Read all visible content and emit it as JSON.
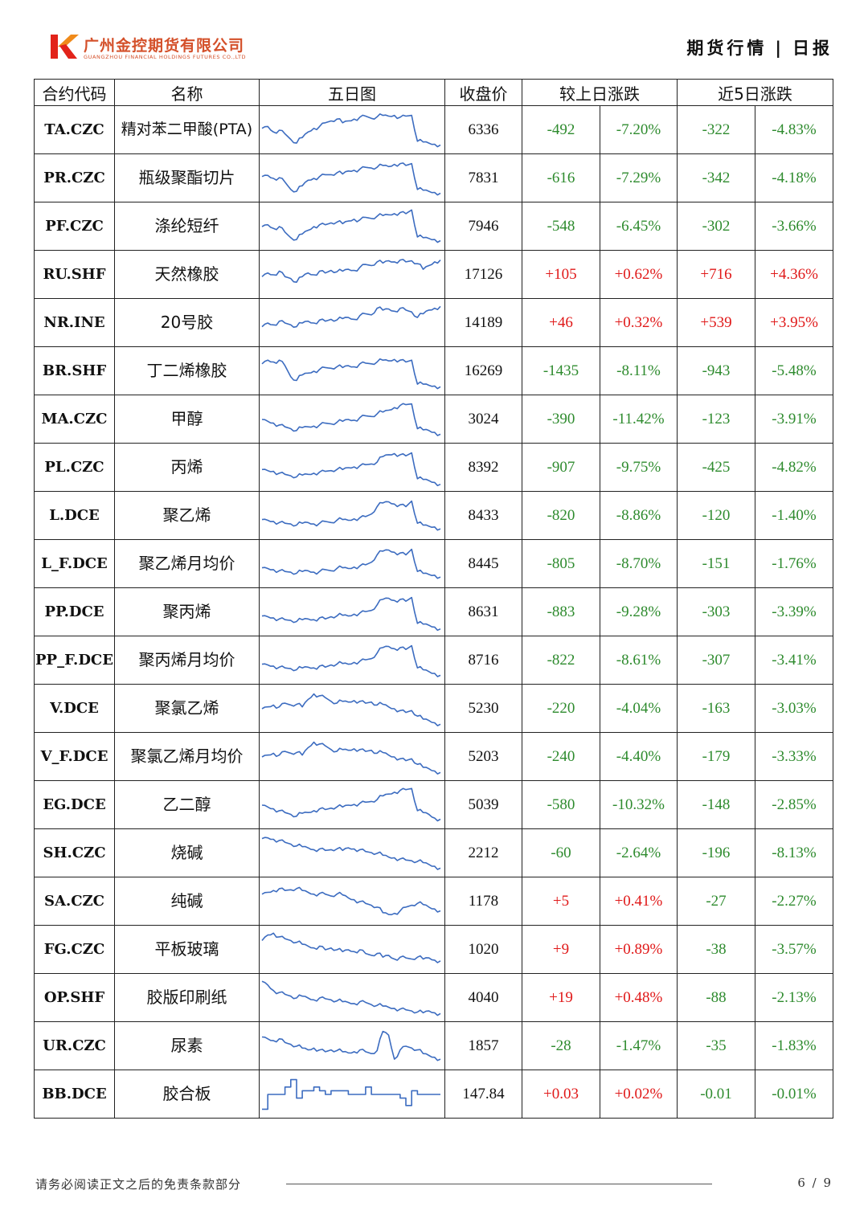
{
  "header": {
    "company_name": "广州金控期货有限公司",
    "company_name_en": "GUANGZHOU FINANCIAL HOLDINGS FUTURES CO.,LTD",
    "report_title": "期货行情",
    "report_type": "日报",
    "brand_color": "#d4502a"
  },
  "table": {
    "headers": {
      "code": "合约代码",
      "name": "名称",
      "chart": "五日图",
      "close": "收盘价",
      "daily": "较上日涨跌",
      "five_day": "近5日涨跌"
    },
    "rows": [
      {
        "code": "TA.CZC",
        "name": "精对苯二甲酸(PTA)",
        "close": "6336",
        "d_chg": "-492",
        "d_pct": "-7.20%",
        "w_chg": "-322",
        "w_pct": "-4.83%"
      },
      {
        "code": "PR.CZC",
        "name": "瓶级聚酯切片",
        "close": "7831",
        "d_chg": "-616",
        "d_pct": "-7.29%",
        "w_chg": "-342",
        "w_pct": "-4.18%"
      },
      {
        "code": "PF.CZC",
        "name": "涤纶短纤",
        "close": "7946",
        "d_chg": "-548",
        "d_pct": "-6.45%",
        "w_chg": "-302",
        "w_pct": "-3.66%"
      },
      {
        "code": "RU.SHF",
        "name": "天然橡胶",
        "close": "17126",
        "d_chg": "+105",
        "d_pct": "+0.62%",
        "w_chg": "+716",
        "w_pct": "+4.36%"
      },
      {
        "code": "NR.INE",
        "name": "20号胶",
        "close": "14189",
        "d_chg": "+46",
        "d_pct": "+0.32%",
        "w_chg": "+539",
        "w_pct": "+3.95%"
      },
      {
        "code": "BR.SHF",
        "name": "丁二烯橡胶",
        "close": "16269",
        "d_chg": "-1435",
        "d_pct": "-8.11%",
        "w_chg": "-943",
        "w_pct": "-5.48%"
      },
      {
        "code": "MA.CZC",
        "name": "甲醇",
        "close": "3024",
        "d_chg": "-390",
        "d_pct": "-11.42%",
        "w_chg": "-123",
        "w_pct": "-3.91%"
      },
      {
        "code": "PL.CZC",
        "name": "丙烯",
        "close": "8392",
        "d_chg": "-907",
        "d_pct": "-9.75%",
        "w_chg": "-425",
        "w_pct": "-4.82%"
      },
      {
        "code": "L.DCE",
        "name": "聚乙烯",
        "close": "8433",
        "d_chg": "-820",
        "d_pct": "-8.86%",
        "w_chg": "-120",
        "w_pct": "-1.40%"
      },
      {
        "code": "L_F.DCE",
        "name": "聚乙烯月均价",
        "close": "8445",
        "d_chg": "-805",
        "d_pct": "-8.70%",
        "w_chg": "-151",
        "w_pct": "-1.76%"
      },
      {
        "code": "PP.DCE",
        "name": "聚丙烯",
        "close": "8631",
        "d_chg": "-883",
        "d_pct": "-9.28%",
        "w_chg": "-303",
        "w_pct": "-3.39%"
      },
      {
        "code": "PP_F.DCE",
        "name": "聚丙烯月均价",
        "close": "8716",
        "d_chg": "-822",
        "d_pct": "-8.61%",
        "w_chg": "-307",
        "w_pct": "-3.41%"
      },
      {
        "code": "V.DCE",
        "name": "聚氯乙烯",
        "close": "5230",
        "d_chg": "-220",
        "d_pct": "-4.04%",
        "w_chg": "-163",
        "w_pct": "-3.03%"
      },
      {
        "code": "V_F.DCE",
        "name": "聚氯乙烯月均价",
        "close": "5203",
        "d_chg": "-240",
        "d_pct": "-4.40%",
        "w_chg": "-179",
        "w_pct": "-3.33%"
      },
      {
        "code": "EG.DCE",
        "name": "乙二醇",
        "close": "5039",
        "d_chg": "-580",
        "d_pct": "-10.32%",
        "w_chg": "-148",
        "w_pct": "-2.85%"
      },
      {
        "code": "SH.CZC",
        "name": "烧碱",
        "close": "2212",
        "d_chg": "-60",
        "d_pct": "-2.64%",
        "w_chg": "-196",
        "w_pct": "-8.13%"
      },
      {
        "code": "SA.CZC",
        "name": "纯碱",
        "close": "1178",
        "d_chg": "+5",
        "d_pct": "+0.41%",
        "w_chg": "-27",
        "w_pct": "-2.27%"
      },
      {
        "code": "FG.CZC",
        "name": "平板玻璃",
        "close": "1020",
        "d_chg": "+9",
        "d_pct": "+0.89%",
        "w_chg": "-38",
        "w_pct": "-3.57%"
      },
      {
        "code": "OP.SHF",
        "name": "胶版印刷纸",
        "close": "4040",
        "d_chg": "+19",
        "d_pct": "+0.48%",
        "w_chg": "-88",
        "w_pct": "-2.13%"
      },
      {
        "code": "UR.CZC",
        "name": "尿素",
        "close": "1857",
        "d_chg": "-28",
        "d_pct": "-1.47%",
        "w_chg": "-35",
        "w_pct": "-1.83%"
      },
      {
        "code": "BB.DCE",
        "name": "胶合板",
        "close": "147.84",
        "d_chg": "+0.03",
        "d_pct": "+0.02%",
        "w_chg": "-0.01",
        "w_pct": "-0.01%"
      }
    ]
  },
  "sparklines": {
    "color": "#3c6cc0",
    "shapes": {
      "TA.CZC": [
        0.45,
        0.4,
        0.55,
        0.5,
        0.6,
        0.75,
        0.85,
        0.7,
        0.55,
        0.45,
        0.4,
        0.3,
        0.25,
        0.2,
        0.3,
        0.25,
        0.2,
        0.15,
        0.12,
        0.18,
        0.14,
        0.1,
        0.12,
        0.1,
        0.15,
        0.12,
        0.1,
        0.8,
        0.82,
        0.85,
        0.88,
        0.9
      ],
      "PR.CZC": [
        0.45,
        0.42,
        0.5,
        0.48,
        0.6,
        0.8,
        0.85,
        0.7,
        0.55,
        0.5,
        0.45,
        0.4,
        0.4,
        0.35,
        0.38,
        0.3,
        0.28,
        0.25,
        0.2,
        0.22,
        0.2,
        0.15,
        0.18,
        0.12,
        0.1,
        0.15,
        0.1,
        0.8,
        0.82,
        0.85,
        0.88,
        0.9
      ],
      "PF.CZC": [
        0.5,
        0.45,
        0.55,
        0.5,
        0.65,
        0.8,
        0.85,
        0.7,
        0.6,
        0.5,
        0.45,
        0.45,
        0.4,
        0.38,
        0.42,
        0.35,
        0.3,
        0.32,
        0.25,
        0.28,
        0.22,
        0.2,
        0.18,
        0.15,
        0.12,
        0.15,
        0.05,
        0.78,
        0.8,
        0.82,
        0.85,
        0.88
      ],
      "RU.SHF": [
        0.55,
        0.45,
        0.5,
        0.4,
        0.55,
        0.6,
        0.7,
        0.55,
        0.45,
        0.5,
        0.4,
        0.45,
        0.38,
        0.42,
        0.4,
        0.35,
        0.38,
        0.3,
        0.22,
        0.25,
        0.15,
        0.18,
        0.12,
        0.15,
        0.1,
        0.15,
        0.12,
        0.2,
        0.35,
        0.25,
        0.15,
        0.1
      ],
      "NR.INE": [
        0.6,
        0.5,
        0.55,
        0.45,
        0.5,
        0.55,
        0.6,
        0.5,
        0.45,
        0.5,
        0.42,
        0.45,
        0.4,
        0.42,
        0.38,
        0.35,
        0.4,
        0.3,
        0.25,
        0.28,
        0.1,
        0.15,
        0.12,
        0.18,
        0.1,
        0.15,
        0.2,
        0.35,
        0.25,
        0.15,
        0.1,
        0.05
      ],
      "BR.SHF": [
        0.3,
        0.2,
        0.25,
        0.2,
        0.35,
        0.65,
        0.75,
        0.6,
        0.55,
        0.5,
        0.45,
        0.4,
        0.42,
        0.38,
        0.4,
        0.35,
        0.38,
        0.3,
        0.28,
        0.3,
        0.25,
        0.2,
        0.22,
        0.18,
        0.2,
        0.25,
        0.2,
        0.85,
        0.85,
        0.88,
        0.9,
        0.92
      ],
      "MA.CZC": [
        0.5,
        0.55,
        0.6,
        0.65,
        0.7,
        0.75,
        0.8,
        0.72,
        0.7,
        0.68,
        0.65,
        0.6,
        0.62,
        0.58,
        0.55,
        0.5,
        0.52,
        0.45,
        0.4,
        0.42,
        0.35,
        0.3,
        0.25,
        0.18,
        0.12,
        0.1,
        0.08,
        0.75,
        0.78,
        0.8,
        0.85,
        0.9
      ],
      "PL.CZC": [
        0.55,
        0.58,
        0.6,
        0.65,
        0.68,
        0.72,
        0.75,
        0.7,
        0.68,
        0.65,
        0.62,
        0.6,
        0.58,
        0.55,
        0.55,
        0.5,
        0.48,
        0.45,
        0.42,
        0.4,
        0.35,
        0.2,
        0.15,
        0.12,
        0.15,
        0.18,
        0.1,
        0.8,
        0.82,
        0.85,
        0.9,
        0.95
      ],
      "L.DCE": [
        0.6,
        0.62,
        0.65,
        0.68,
        0.7,
        0.72,
        0.75,
        0.7,
        0.68,
        0.72,
        0.7,
        0.65,
        0.68,
        0.62,
        0.6,
        0.62,
        0.58,
        0.55,
        0.52,
        0.45,
        0.25,
        0.15,
        0.12,
        0.18,
        0.2,
        0.25,
        0.1,
        0.7,
        0.75,
        0.78,
        0.8,
        0.85
      ],
      "L_F.DCE": [
        0.6,
        0.62,
        0.65,
        0.68,
        0.7,
        0.72,
        0.75,
        0.7,
        0.68,
        0.72,
        0.7,
        0.65,
        0.68,
        0.62,
        0.6,
        0.62,
        0.58,
        0.55,
        0.52,
        0.45,
        0.25,
        0.15,
        0.12,
        0.18,
        0.2,
        0.25,
        0.1,
        0.7,
        0.75,
        0.78,
        0.8,
        0.85
      ],
      "PP.DCE": [
        0.6,
        0.62,
        0.65,
        0.68,
        0.7,
        0.72,
        0.75,
        0.7,
        0.68,
        0.7,
        0.65,
        0.68,
        0.62,
        0.6,
        0.58,
        0.6,
        0.55,
        0.52,
        0.48,
        0.45,
        0.3,
        0.15,
        0.12,
        0.18,
        0.15,
        0.2,
        0.1,
        0.8,
        0.82,
        0.85,
        0.9,
        0.95
      ],
      "PP_F.DCE": [
        0.6,
        0.62,
        0.65,
        0.68,
        0.7,
        0.72,
        0.75,
        0.7,
        0.68,
        0.7,
        0.65,
        0.68,
        0.62,
        0.6,
        0.58,
        0.6,
        0.55,
        0.52,
        0.48,
        0.45,
        0.3,
        0.15,
        0.12,
        0.18,
        0.15,
        0.2,
        0.1,
        0.7,
        0.75,
        0.8,
        0.85,
        0.9
      ],
      "V.DCE": [
        0.5,
        0.45,
        0.4,
        0.45,
        0.35,
        0.4,
        0.38,
        0.45,
        0.25,
        0.1,
        0.15,
        0.2,
        0.3,
        0.35,
        0.3,
        0.32,
        0.28,
        0.3,
        0.35,
        0.32,
        0.4,
        0.38,
        0.45,
        0.5,
        0.55,
        0.6,
        0.55,
        0.7,
        0.78,
        0.82,
        0.88,
        0.92
      ],
      "V_F.DCE": [
        0.5,
        0.45,
        0.4,
        0.45,
        0.35,
        0.4,
        0.38,
        0.45,
        0.25,
        0.1,
        0.15,
        0.2,
        0.3,
        0.35,
        0.3,
        0.32,
        0.28,
        0.3,
        0.35,
        0.32,
        0.4,
        0.38,
        0.45,
        0.5,
        0.55,
        0.6,
        0.55,
        0.7,
        0.78,
        0.82,
        0.88,
        0.92
      ],
      "EG.DCE": [
        0.5,
        0.55,
        0.6,
        0.65,
        0.7,
        0.75,
        0.8,
        0.72,
        0.7,
        0.65,
        0.6,
        0.62,
        0.58,
        0.55,
        0.55,
        0.5,
        0.48,
        0.45,
        0.42,
        0.4,
        0.35,
        0.25,
        0.2,
        0.15,
        0.1,
        0.08,
        0.05,
        0.65,
        0.7,
        0.75,
        0.85,
        0.88
      ],
      "SH.CZC": [
        0.1,
        0.08,
        0.12,
        0.15,
        0.2,
        0.25,
        0.3,
        0.32,
        0.35,
        0.4,
        0.38,
        0.42,
        0.4,
        0.38,
        0.42,
        0.35,
        0.38,
        0.4,
        0.45,
        0.48,
        0.5,
        0.55,
        0.6,
        0.62,
        0.65,
        0.68,
        0.7,
        0.72,
        0.75,
        0.8,
        0.85,
        0.9
      ],
      "SA.CZC": [
        0.3,
        0.25,
        0.2,
        0.15,
        0.2,
        0.18,
        0.15,
        0.2,
        0.25,
        0.3,
        0.28,
        0.3,
        0.35,
        0.3,
        0.32,
        0.4,
        0.45,
        0.5,
        0.55,
        0.6,
        0.65,
        0.8,
        0.85,
        0.82,
        0.75,
        0.65,
        0.6,
        0.55,
        0.58,
        0.65,
        0.7,
        0.75
      ],
      "FG.CZC": [
        0.25,
        0.1,
        0.05,
        0.15,
        0.2,
        0.25,
        0.3,
        0.35,
        0.4,
        0.45,
        0.4,
        0.5,
        0.45,
        0.5,
        0.55,
        0.5,
        0.55,
        0.5,
        0.6,
        0.65,
        0.6,
        0.7,
        0.65,
        0.75,
        0.7,
        0.72,
        0.75,
        0.7,
        0.75,
        0.72,
        0.78,
        0.8
      ],
      "OP.SHF": [
        0.05,
        0.15,
        0.3,
        0.35,
        0.4,
        0.45,
        0.5,
        0.45,
        0.5,
        0.55,
        0.5,
        0.52,
        0.55,
        0.58,
        0.6,
        0.62,
        0.65,
        0.6,
        0.62,
        0.68,
        0.7,
        0.72,
        0.75,
        0.78,
        0.8,
        0.82,
        0.85,
        0.88,
        0.9,
        0.85,
        0.9,
        0.92
      ],
      "UR.CZC": [
        0.25,
        0.3,
        0.35,
        0.3,
        0.4,
        0.45,
        0.5,
        0.55,
        0.6,
        0.55,
        0.6,
        0.65,
        0.6,
        0.62,
        0.65,
        0.68,
        0.65,
        0.6,
        0.65,
        0.7,
        0.62,
        0.1,
        0.2,
        0.85,
        0.6,
        0.5,
        0.55,
        0.6,
        0.7,
        0.75,
        0.8,
        0.85
      ],
      "BB.DCE": [
        0.9,
        0.5,
        0.5,
        0.5,
        0.3,
        0.1,
        0.6,
        0.4,
        0.4,
        0.3,
        0.4,
        0.5,
        0.4,
        0.4,
        0.4,
        0.5,
        0.5,
        0.5,
        0.3,
        0.5,
        0.5,
        0.5,
        0.5,
        0.5,
        0.6,
        0.8,
        0.4,
        0.5,
        0.5,
        0.5,
        0.5,
        0.5
      ]
    }
  },
  "footer": {
    "disclaimer": "请务必阅读正文之后的免责条款部分",
    "page": "6 / 9"
  }
}
